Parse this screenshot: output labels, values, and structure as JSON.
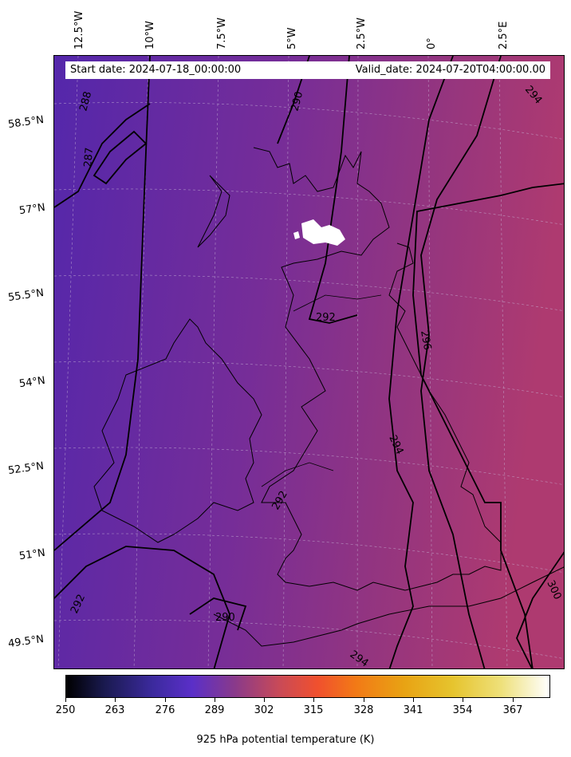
{
  "header": {
    "start_date": "Start date: 2024-07-18_00:00:00",
    "valid_date": "Valid_date: 2024-07-20T04:00:00.00"
  },
  "longitude_labels": [
    "12.5°W",
    "10°W",
    "7.5°W",
    "5°W",
    "2.5°W",
    "0°",
    "2.5°E"
  ],
  "latitude_labels": [
    "58.5°N",
    "57°N",
    "55.5°N",
    "54°N",
    "52.5°N",
    "51°N",
    "49.5°N"
  ],
  "contour_labels": [
    "288",
    "287",
    "290",
    "294",
    "292",
    "296",
    "294",
    "292",
    "292",
    "290",
    "294",
    "300"
  ],
  "colorbar": {
    "title": "925 hPa potential temperature (K)",
    "ticks": [
      "250",
      "263",
      "276",
      "289",
      "302",
      "315",
      "328",
      "341",
      "354",
      "367"
    ],
    "range": [
      250,
      377
    ],
    "colormap": "CMRmap"
  },
  "colors": {
    "field_west": "#5a2aa8",
    "field_centre": "#7a2e95",
    "field_east": "#a83a78",
    "contour": "#000000",
    "coastline": "#000000"
  }
}
